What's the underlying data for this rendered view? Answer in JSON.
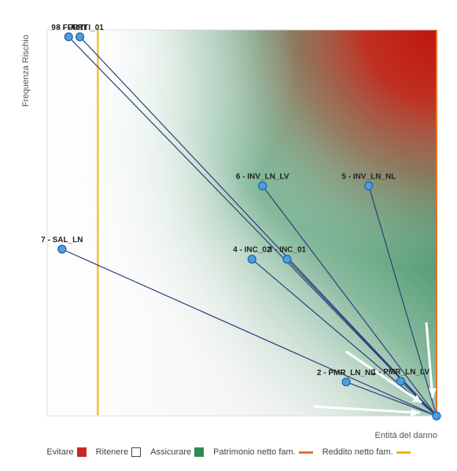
{
  "chart_data": {
    "type": "scatter",
    "title": "",
    "xlabel": "Entitá del danno",
    "ylabel": "Frequenza Rischio",
    "xlim": [
      0,
      100
    ],
    "ylim": [
      0,
      100
    ],
    "points": [
      {
        "label": "9 - FURTI",
        "x": 5.5,
        "y": 98.2
      },
      {
        "label": "8 - FURTI_01",
        "x": 8.4,
        "y": 98.2
      },
      {
        "label": "6 - INV_LN_LV",
        "x": 55.3,
        "y": 59.6
      },
      {
        "label": "5 - INV_LN_NL",
        "x": 82.6,
        "y": 59.6
      },
      {
        "label": "7 - SAL_LN",
        "x": 3.8,
        "y": 43.2
      },
      {
        "label": "4 - INC_02",
        "x": 52.6,
        "y": 40.6
      },
      {
        "label": "3 - INC_01",
        "x": 61.6,
        "y": 40.6
      },
      {
        "label": "2 - PMR_LN_NL",
        "x": 76.8,
        "y": 8.8
      },
      {
        "label": "1 - PMR_LN_LV",
        "x": 90.8,
        "y": 9.0
      },
      {
        "label": "",
        "x": 100,
        "y": 0
      }
    ],
    "link_target": {
      "x": 100,
      "y": 0
    },
    "reference_lines": [
      {
        "name": "Patrimonio netto fam.",
        "x": 100,
        "color": "#e8732a"
      },
      {
        "name": "Reddito netto fam.",
        "x": 13,
        "color": "#f0b400"
      }
    ],
    "zones": [
      {
        "name": "Evitare",
        "color": "#c62828"
      },
      {
        "name": "Ritenere",
        "color": "#ffffff"
      },
      {
        "name": "Assicurare",
        "color": "#2e8b57"
      }
    ],
    "colors": {
      "line": "#2b3f7a",
      "marker_fill": "#4a9fe0",
      "marker_stroke": "#1f5fa8",
      "arrow": "#ffffff"
    }
  },
  "legend": {
    "evitare": "Evitare",
    "ritenere": "Ritenere",
    "assicurare": "Assicurare",
    "patrimonio": "Patrimonio netto fam.",
    "reddito": "Reddito netto fam."
  }
}
